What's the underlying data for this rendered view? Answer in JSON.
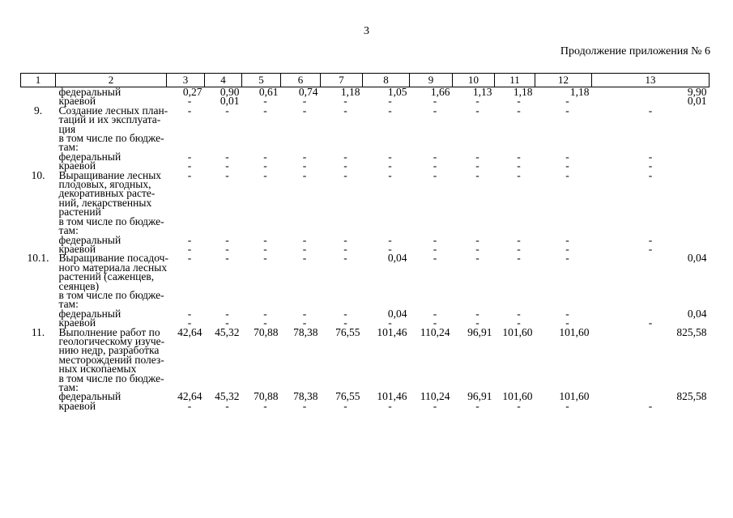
{
  "page": {
    "number": "3",
    "continuation": "Продолжение приложения № 6"
  },
  "table": {
    "header": [
      "1",
      "2",
      "3",
      "4",
      "5",
      "6",
      "7",
      "8",
      "9",
      "10",
      "11",
      "12",
      "13"
    ],
    "rows": [
      {
        "type": "single",
        "num": "",
        "label": "федеральный",
        "values": [
          "0,27",
          "0,90",
          "0,61",
          "0,74",
          "1,18",
          "1,05",
          "1,66",
          "1,13",
          "1,18",
          "1,18",
          "9,90"
        ]
      },
      {
        "type": "single",
        "num": "",
        "label": "краевой",
        "values": [
          "-",
          "0,01",
          "-",
          "-",
          "-",
          "-",
          "-",
          "-",
          "-",
          "-",
          "0,01"
        ]
      },
      {
        "type": "section",
        "num": "9.",
        "label": "Создание лесных план-\nтаций и их эксплуата-\nция",
        "values": [
          "-",
          "-",
          "-",
          "-",
          "-",
          "-",
          "-",
          "-",
          "-",
          "-",
          "-"
        ]
      },
      {
        "type": "subhead",
        "num": "",
        "label": "в том числе по бюдже-\nтам:",
        "values": []
      },
      {
        "type": "single",
        "num": "",
        "label": "федеральный",
        "values": [
          "-",
          "-",
          "-",
          "-",
          "-",
          "-",
          "-",
          "-",
          "-",
          "-",
          "-"
        ]
      },
      {
        "type": "single",
        "num": "",
        "label": "краевой",
        "values": [
          "-",
          "-",
          "-",
          "-",
          "-",
          "-",
          "-",
          "-",
          "-",
          "-",
          "-"
        ]
      },
      {
        "type": "section",
        "num": "10.",
        "label": "Выращивание лесных\nплодовых, ягодных,\nдекоративных расте-\nний, лекарственных\nрастений",
        "values": [
          "-",
          "-",
          "-",
          "-",
          "-",
          "-",
          "-",
          "-",
          "-",
          "-",
          "-"
        ]
      },
      {
        "type": "subhead",
        "num": "",
        "label": "в том числе по бюдже-\nтам:",
        "values": []
      },
      {
        "type": "single",
        "num": "",
        "label": "федеральный",
        "values": [
          "-",
          "-",
          "-",
          "-",
          "-",
          "-",
          "-",
          "-",
          "-",
          "-",
          "-"
        ]
      },
      {
        "type": "single",
        "num": "",
        "label": "краевой",
        "values": [
          "-",
          "-",
          "-",
          "-",
          "-",
          "-",
          "-",
          "-",
          "-",
          "-",
          "-"
        ]
      },
      {
        "type": "section",
        "num": "10.1.",
        "label": "Выращивание посадоч-\nного материала лесных\nрастений (саженцев,\nсеянцев)",
        "values": [
          "-",
          "-",
          "-",
          "-",
          "-",
          "0,04",
          "-",
          "-",
          "-",
          "-",
          "0,04"
        ]
      },
      {
        "type": "subhead",
        "num": "",
        "label": "в том числе по бюдже-\nтам:",
        "values": []
      },
      {
        "type": "single",
        "num": "",
        "label": "федеральный",
        "values": [
          "-",
          "-",
          "-",
          "-",
          "-",
          "0,04",
          "-",
          "-",
          "-",
          "-",
          "0,04"
        ]
      },
      {
        "type": "single",
        "num": "",
        "label": "краевой",
        "values": [
          "-",
          "-",
          "-",
          "-",
          "-",
          "-",
          "-",
          "-",
          "-",
          "-",
          "-"
        ]
      },
      {
        "type": "section",
        "num": "11.",
        "label": "Выполнение работ по\nгеологическому изуче-\nнию недр, разработка\nместорождений полез-\nных ископаемых",
        "values": [
          "42,64",
          "45,32",
          "70,88",
          "78,38",
          "76,55",
          "101,46",
          "110,24",
          "96,91",
          "101,60",
          "101,60",
          "825,58"
        ]
      },
      {
        "type": "subhead",
        "num": "",
        "label": "в том числе по бюдже-\nтам:",
        "values": []
      },
      {
        "type": "single",
        "num": "",
        "label": "федеральный",
        "values": [
          "42,64",
          "45,32",
          "70,88",
          "78,38",
          "76,55",
          "101,46",
          "110,24",
          "96,91",
          "101,60",
          "101,60",
          "825,58"
        ]
      },
      {
        "type": "single",
        "num": "",
        "label": "краевой",
        "values": [
          "-",
          "-",
          "-",
          "-",
          "-",
          "-",
          "-",
          "-",
          "-",
          "-",
          "-"
        ]
      }
    ]
  }
}
